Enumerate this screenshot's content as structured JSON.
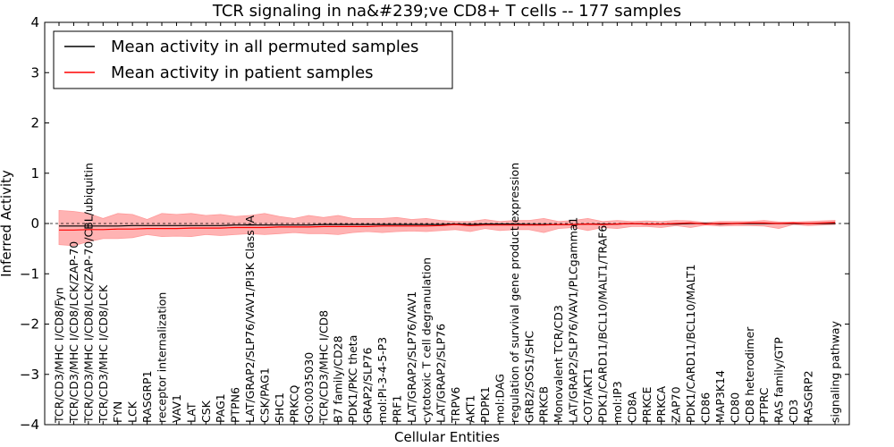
{
  "chart_data": {
    "type": "line",
    "title": "TCR signaling in na&#239;ve CD8+ T cells -- 177 samples",
    "xlabel": "Cellular Entities",
    "ylabel": "Inferred Activity",
    "ylim": [
      -4,
      4
    ],
    "yticks": [
      -4,
      -3,
      -2,
      -1,
      0,
      1,
      2,
      3,
      4
    ],
    "legend_position": "top-left",
    "categories": [
      "TCR/CD3/MHC I/CD8/Fyn",
      "TCR/CD3/MHC I/CD8/LCK/ZAP-70",
      "TCR/CD3/MHC I/CD8/LCK/ZAP-70/CBL/ubiquitin",
      "TCR/CD3/MHC I/CD8/LCK",
      "FYN",
      "LCK",
      "RASGRP1",
      "receptor internalization",
      "VAV1",
      "LAT",
      "CSK",
      "PAG1",
      "PTPN6",
      "LAT/GRAP2/SLP76/VAV1/PI3K Class IA",
      "CSK/PAG1",
      "SHC1",
      "PRKCQ",
      "GO:0035030",
      "TCR/CD3/MHC I/CD8",
      "B7 family/CD28",
      "PDK1/PKC theta",
      "GRAP2/SLP76",
      "mol:PI-3-4-5-P3",
      "PRF1",
      "LAT/GRAP2/SLP76/VAV1",
      "cytotoxic T cell degranulation",
      "LAT/GRAP2/SLP76",
      "TRPV6",
      "AKT1",
      "PDPK1",
      "mol:DAG",
      "regulation of survival gene product expression",
      "GRB2/SOS1/SHC",
      "PRKCB",
      "Monovalent TCR/CD3",
      "LAT/GRAP2/SLP76/VAV1/PLCgamma1",
      "COT/AKT1",
      "PDK1/CARD11/BCL10/MALT1/TRAF6",
      "mol:IP3",
      "CD8A",
      "PRKCE",
      "PRKCA",
      "ZAP70",
      "PDK1/CARD11/BCL10/MALT1",
      "CD86",
      "MAP3K14",
      "CD80",
      "CD8 heterodimer",
      "PTPRC",
      "RAS family/GTP",
      "CD3",
      "RASGRP2",
      "signaling pathway"
    ],
    "series": [
      {
        "name": "Mean activity in all permuted samples",
        "color": "#000000",
        "values": [
          -0.05,
          -0.05,
          -0.05,
          -0.05,
          -0.05,
          -0.04,
          -0.04,
          -0.04,
          -0.04,
          -0.04,
          -0.04,
          -0.04,
          -0.03,
          -0.03,
          -0.03,
          -0.03,
          -0.03,
          -0.03,
          -0.02,
          -0.02,
          -0.02,
          -0.02,
          -0.02,
          -0.02,
          -0.02,
          -0.02,
          -0.02,
          -0.01,
          -0.02,
          -0.01,
          -0.01,
          -0.01,
          -0.02,
          -0.02,
          -0.02,
          -0.02,
          -0.01,
          -0.01,
          -0.01,
          0.0,
          -0.01,
          -0.01,
          -0.01,
          0.0,
          0.0,
          -0.01,
          0.0,
          0.0,
          0.0,
          0.0,
          0.0,
          0.0,
          0.0
        ]
      },
      {
        "name": "Mean activity in patient samples",
        "color": "#ff0000",
        "band_color": "#ff9999",
        "values": [
          -0.13,
          -0.13,
          -0.12,
          -0.12,
          -0.11,
          -0.11,
          -0.1,
          -0.1,
          -0.1,
          -0.09,
          -0.09,
          -0.09,
          -0.08,
          -0.08,
          -0.08,
          -0.07,
          -0.07,
          -0.07,
          -0.06,
          -0.06,
          -0.06,
          -0.06,
          -0.05,
          -0.05,
          -0.05,
          -0.05,
          -0.04,
          -0.02,
          -0.04,
          -0.03,
          -0.03,
          -0.03,
          -0.03,
          -0.03,
          -0.02,
          -0.02,
          -0.01,
          -0.02,
          -0.01,
          0.0,
          -0.01,
          -0.01,
          0.0,
          0.01,
          -0.01,
          0.0,
          0.0,
          0.01,
          0.01,
          0.0,
          0.01,
          0.0,
          0.02
        ],
        "lower": [
          -0.42,
          -0.44,
          -0.36,
          -0.3,
          -0.3,
          -0.28,
          -0.22,
          -0.26,
          -0.25,
          -0.26,
          -0.22,
          -0.24,
          -0.22,
          -0.2,
          -0.22,
          -0.2,
          -0.18,
          -0.2,
          -0.2,
          -0.22,
          -0.18,
          -0.16,
          -0.18,
          -0.16,
          -0.15,
          -0.16,
          -0.14,
          -0.12,
          -0.16,
          -0.1,
          -0.14,
          -0.12,
          -0.12,
          -0.18,
          -0.1,
          -0.08,
          -0.14,
          -0.08,
          -0.1,
          -0.06,
          -0.06,
          -0.08,
          -0.04,
          -0.08,
          -0.03,
          -0.05,
          -0.04,
          -0.04,
          -0.05,
          -0.1,
          -0.02,
          -0.04,
          -0.02
        ],
        "upper": [
          0.26,
          0.24,
          0.2,
          0.1,
          0.2,
          0.18,
          0.08,
          0.2,
          0.18,
          0.2,
          0.16,
          0.18,
          0.14,
          0.16,
          0.2,
          0.14,
          0.1,
          0.16,
          0.12,
          0.16,
          0.1,
          0.1,
          0.1,
          0.12,
          0.08,
          0.1,
          0.06,
          0.04,
          0.04,
          0.08,
          0.04,
          0.06,
          0.06,
          0.1,
          0.04,
          0.06,
          0.1,
          0.04,
          0.06,
          0.04,
          0.05,
          0.04,
          0.06,
          0.05,
          0.02,
          0.04,
          0.04,
          0.04,
          0.06,
          0.03,
          0.03,
          0.04,
          0.06
        ]
      }
    ]
  }
}
